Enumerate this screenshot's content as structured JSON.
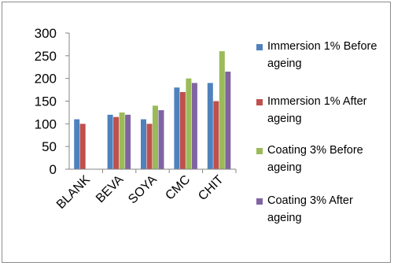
{
  "chart_data": {
    "type": "bar",
    "categories": [
      "BLANK",
      "BEVA",
      "SOYA",
      "CMC",
      "CHIT"
    ],
    "series": [
      {
        "name": "Immersion 1% Before ageing",
        "color": "#4f81bd",
        "values": [
          110,
          120,
          110,
          180,
          190
        ]
      },
      {
        "name": "Immersion 1% After ageing",
        "color": "#c0504d",
        "values": [
          100,
          115,
          100,
          170,
          150
        ]
      },
      {
        "name": "Coating 3% Before ageing",
        "color": "#9bbb59",
        "values": [
          0,
          125,
          140,
          200,
          260
        ]
      },
      {
        "name": "Coating 3% After ageing",
        "color": "#8064a2",
        "values": [
          0,
          120,
          130,
          190,
          215
        ]
      }
    ],
    "y_ticks": [
      0,
      50,
      100,
      150,
      200,
      250,
      300
    ],
    "ylim": [
      0,
      300
    ],
    "grid": false,
    "legend_position": "right"
  }
}
